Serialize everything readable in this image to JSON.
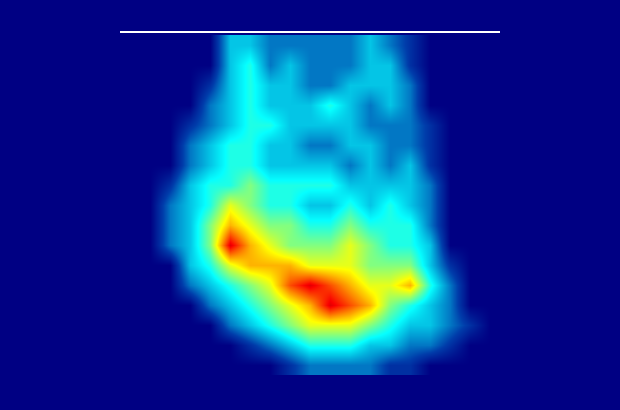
{
  "chart_data": {
    "type": "heatmap",
    "tick_labels": false,
    "zlim": [
      0,
      10
    ],
    "cells": [
      [
        0,
        0,
        0,
        0,
        0,
        3,
        3,
        2,
        2,
        2,
        2,
        2,
        3,
        2,
        1,
        0,
        0,
        0,
        0
      ],
      [
        0,
        0,
        0,
        0,
        0,
        3,
        4,
        2,
        3,
        2,
        2,
        2,
        3,
        3,
        1,
        0,
        0,
        0,
        0
      ],
      [
        0,
        0,
        0,
        0,
        1,
        3,
        4,
        3,
        3,
        2,
        2,
        3,
        3,
        3,
        2,
        0,
        0,
        0,
        0
      ],
      [
        0,
        0,
        0,
        0,
        2,
        3,
        4,
        3,
        3,
        3,
        4,
        3,
        2,
        3,
        2,
        0,
        0,
        0,
        0
      ],
      [
        0,
        0,
        0,
        1,
        2,
        3,
        4,
        4,
        3,
        3,
        3,
        3,
        2,
        2,
        2,
        1,
        0,
        0,
        0
      ],
      [
        0,
        0,
        0,
        2,
        3,
        4,
        4,
        3,
        3,
        2,
        2,
        3,
        3,
        2,
        2,
        1,
        0,
        0,
        0
      ],
      [
        0,
        0,
        0,
        2,
        3,
        4,
        4,
        3,
        3,
        3,
        3,
        2,
        3,
        2,
        3,
        1,
        0,
        0,
        0
      ],
      [
        0,
        0,
        1,
        3,
        4,
        4,
        5,
        4,
        4,
        4,
        4,
        3,
        3,
        3,
        3,
        2,
        0,
        0,
        0
      ],
      [
        0,
        0,
        2,
        3,
        4,
        6,
        5,
        4,
        4,
        3,
        3,
        4,
        3,
        4,
        3,
        2,
        0,
        0,
        0
      ],
      [
        0,
        0,
        2,
        3,
        5,
        7,
        6,
        5,
        5,
        4,
        4,
        5,
        4,
        4,
        4,
        2,
        0,
        0,
        0
      ],
      [
        0,
        0,
        2,
        3,
        5,
        9,
        7,
        6,
        5,
        5,
        5,
        6,
        5,
        4,
        4,
        3,
        0,
        0,
        0
      ],
      [
        0,
        0,
        0,
        3,
        4,
        6,
        7,
        7,
        7,
        6,
        6,
        6,
        5,
        5,
        5,
        3,
        1,
        0,
        0
      ],
      [
        0,
        0,
        0,
        2,
        3,
        4,
        5,
        6,
        8,
        9,
        8,
        7,
        6,
        6,
        7,
        4,
        2,
        0,
        0
      ],
      [
        0,
        0,
        0,
        0,
        2,
        3,
        4,
        5,
        6,
        7,
        9,
        8,
        7,
        5,
        4,
        3,
        2,
        0,
        0
      ],
      [
        0,
        0,
        0,
        0,
        0,
        2,
        3,
        4,
        5,
        6,
        6,
        6,
        5,
        4,
        3,
        3,
        2,
        1,
        0
      ],
      [
        0,
        0,
        0,
        0,
        0,
        0,
        1,
        2,
        3,
        4,
        4,
        4,
        3,
        3,
        2,
        2,
        1,
        0,
        0
      ],
      [
        0,
        0,
        0,
        0,
        0,
        0,
        0,
        0,
        1,
        2,
        2,
        2,
        2,
        1,
        1,
        0,
        0,
        0,
        0
      ]
    ]
  }
}
